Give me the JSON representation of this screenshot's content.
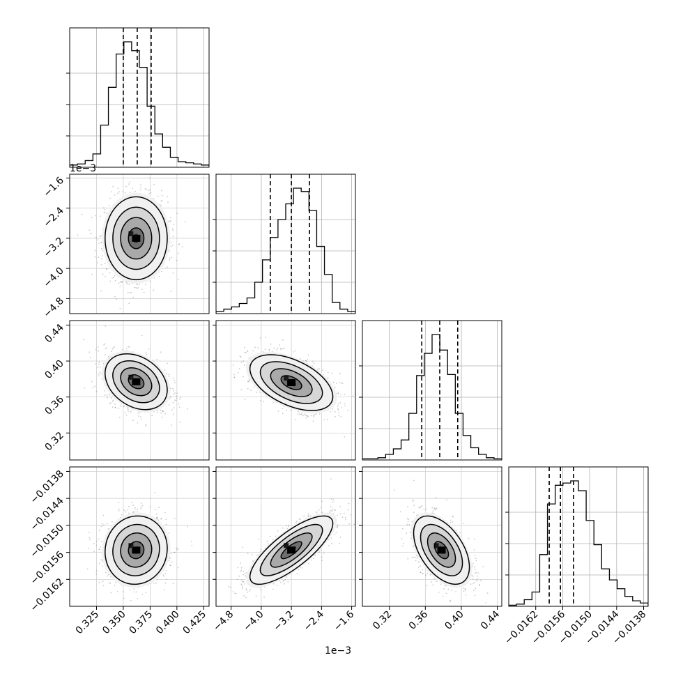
{
  "chart_data": {
    "type": "corner",
    "grid": true,
    "parameters": [
      {
        "range": [
          0.3,
          0.43
        ],
        "ticks": [
          0.325,
          0.35,
          0.375,
          0.4,
          0.425
        ],
        "tick_labels": [
          "0.325",
          "0.350",
          "0.375",
          "0.400",
          "0.425"
        ],
        "quantiles": [
          0.35,
          0.363,
          0.376
        ],
        "offset": ""
      },
      {
        "range": [
          -5.2,
          -1.5
        ],
        "ticks": [
          -4.8,
          -4.0,
          -3.2,
          -2.4,
          -1.6
        ],
        "tick_labels": [
          "−4.8",
          "−4.0",
          "−3.2",
          "−2.4",
          "−1.6"
        ],
        "quantiles": [
          -3.76,
          -3.2,
          -2.72
        ],
        "offset": "1e−3"
      },
      {
        "range": [
          0.29,
          0.445
        ],
        "ticks": [
          0.32,
          0.36,
          0.4,
          0.44
        ],
        "tick_labels": [
          "0.32",
          "0.36",
          "0.40",
          "0.44"
        ],
        "quantiles": [
          0.356,
          0.376,
          0.396
        ],
        "offset": ""
      },
      {
        "range": [
          -0.0168,
          -0.0137
        ],
        "ticks": [
          -0.0162,
          -0.0156,
          -0.015,
          -0.0144,
          -0.0138
        ],
        "tick_labels": [
          "−0.0162",
          "−0.0156",
          "−0.0150",
          "−0.0144",
          "−0.0138"
        ],
        "quantiles": [
          -0.0159,
          -0.01565,
          -0.01536
        ],
        "offset": ""
      }
    ],
    "histograms": [
      [
        2,
        3,
        6,
        12,
        38,
        72,
        102,
        113,
        105,
        90,
        55,
        30,
        18,
        9,
        5,
        4,
        3,
        2
      ],
      [
        2,
        4,
        6,
        9,
        14,
        28,
        48,
        68,
        84,
        98,
        112,
        109,
        92,
        60,
        35,
        10,
        4,
        2
      ],
      [
        1,
        1,
        2,
        5,
        10,
        18,
        42,
        76,
        96,
        113,
        99,
        77,
        42,
        22,
        11,
        5,
        2,
        1
      ],
      [
        1,
        2,
        6,
        13,
        47,
        93,
        110,
        112,
        114,
        105,
        78,
        56,
        34,
        24,
        16,
        9,
        5,
        3
      ]
    ],
    "pairs": [
      {
        "x": 0,
        "y": 1,
        "center": [
          0.362,
          -3.2
        ],
        "sigma": [
          0.0145,
          0.55
        ],
        "rho": 0.0
      },
      {
        "x": 0,
        "y": 2,
        "center": [
          0.362,
          0.377
        ],
        "sigma": [
          0.0145,
          0.0155
        ],
        "rho": -0.3
      },
      {
        "x": 1,
        "y": 2,
        "center": [
          -3.2,
          0.376
        ],
        "sigma": [
          0.55,
          0.0155
        ],
        "rho": -0.5
      },
      {
        "x": 0,
        "y": 3,
        "center": [
          0.362,
          -0.01555
        ],
        "sigma": [
          0.0145,
          0.00038
        ],
        "rho": 0.05
      },
      {
        "x": 1,
        "y": 3,
        "center": [
          -3.2,
          -0.01555
        ],
        "sigma": [
          0.55,
          0.00038
        ],
        "rho": 0.78
      },
      {
        "x": 2,
        "y": 3,
        "center": [
          0.378,
          -0.01555
        ],
        "sigma": [
          0.0155,
          0.00038
        ],
        "rho": -0.5
      }
    ],
    "contour_levels_sigma": [
      0.5,
      1.0,
      1.5,
      2.0
    ]
  }
}
